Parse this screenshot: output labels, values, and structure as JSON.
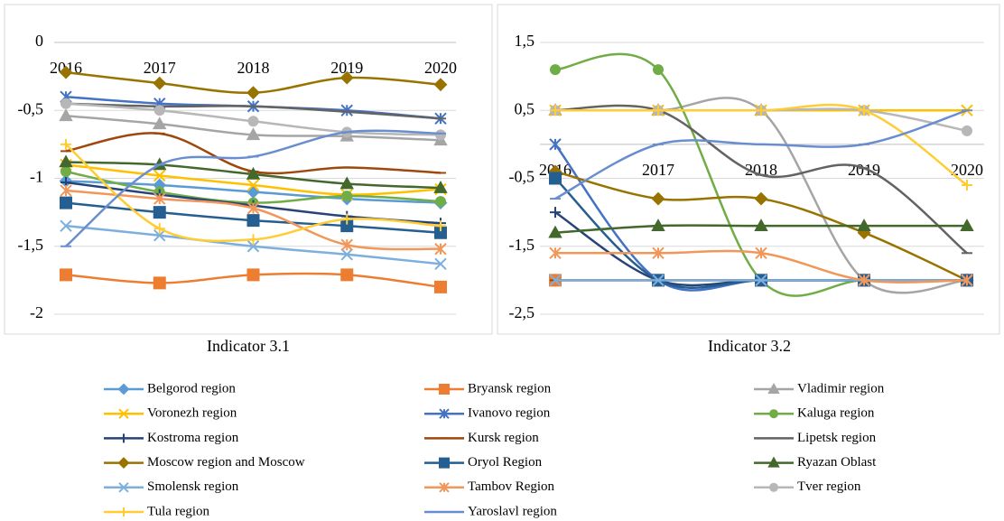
{
  "chart_data": [
    {
      "type": "line",
      "title": "Indicator 3.1",
      "categories": [
        "2016",
        "2017",
        "2018",
        "2019",
        "2020"
      ],
      "ylim": [
        -2,
        0
      ],
      "yticks": [
        0,
        {
          "value": -0.5,
          "label": "-0,5"
        },
        -1,
        {
          "value": -1.5,
          "label": "-1,5"
        },
        -2
      ],
      "grid": true,
      "smooth": true,
      "series": [
        {
          "name": "Belgorod region",
          "color": "#5b9bd5",
          "marker": "diamond",
          "values": [
            -1.02,
            -1.05,
            -1.1,
            -1.15,
            -1.18
          ]
        },
        {
          "name": "Bryansk region",
          "color": "#ed7d31",
          "marker": "square",
          "values": [
            -1.71,
            -1.77,
            -1.71,
            -1.71,
            -1.8
          ]
        },
        {
          "name": "Vladimir region",
          "color": "#a5a5a5",
          "marker": "triangle",
          "values": [
            -0.54,
            -0.6,
            -0.68,
            -0.69,
            -0.72
          ]
        },
        {
          "name": "Voronezh region",
          "color": "#ffc000",
          "marker": "x",
          "values": [
            -0.9,
            -0.98,
            -1.05,
            -1.12,
            -1.08
          ]
        },
        {
          "name": "Ivanovo region",
          "color": "#4472c4",
          "marker": "asterisk",
          "values": [
            -0.4,
            -0.45,
            -0.47,
            -0.5,
            -0.56
          ]
        },
        {
          "name": "Kaluga region",
          "color": "#70ad47",
          "marker": "circle",
          "values": [
            -0.95,
            -1.1,
            -1.18,
            -1.13,
            -1.17
          ]
        },
        {
          "name": "Kostroma region",
          "color": "#264478",
          "marker": "plus",
          "values": [
            -1.03,
            -1.12,
            -1.2,
            -1.28,
            -1.33
          ]
        },
        {
          "name": "Kursk region",
          "color": "#9e480e",
          "marker": "dash",
          "values": [
            -0.8,
            -0.67,
            -0.95,
            -0.92,
            -0.96
          ]
        },
        {
          "name": "Lipetsk region",
          "color": "#636363",
          "marker": "dash",
          "values": [
            -0.45,
            -0.47,
            -0.47,
            -0.51,
            -0.56
          ]
        },
        {
          "name": "Moscow region and Moscow",
          "color": "#997300",
          "marker": "diamond",
          "values": [
            -0.22,
            -0.3,
            -0.37,
            -0.26,
            -0.31
          ]
        },
        {
          "name": "Oryol Region",
          "color": "#255e91",
          "marker": "square",
          "values": [
            -1.18,
            -1.25,
            -1.31,
            -1.35,
            -1.4
          ]
        },
        {
          "name": "Ryazan Oblast",
          "color": "#43682b",
          "marker": "triangle",
          "values": [
            -0.88,
            -0.9,
            -0.97,
            -1.04,
            -1.07
          ]
        },
        {
          "name": "Smolensk region",
          "color": "#7cafdd",
          "marker": "x",
          "values": [
            -1.35,
            -1.42,
            -1.5,
            -1.56,
            -1.63
          ]
        },
        {
          "name": "Tambov Region",
          "color": "#f1975a",
          "marker": "asterisk",
          "values": [
            -1.09,
            -1.15,
            -1.22,
            -1.49,
            -1.52
          ]
        },
        {
          "name": "Tver region",
          "color": "#b7b7b7",
          "marker": "circle",
          "values": [
            -0.45,
            -0.5,
            -0.58,
            -0.66,
            -0.68
          ]
        },
        {
          "name": "Tula region",
          "color": "#ffcd33",
          "marker": "plus",
          "values": [
            -0.75,
            -1.37,
            -1.45,
            -1.3,
            -1.35
          ]
        },
        {
          "name": "Yaroslavl region",
          "color": "#698ed0",
          "marker": "dash",
          "values": [
            -1.5,
            -0.9,
            -0.84,
            -0.66,
            -0.67
          ]
        }
      ]
    },
    {
      "type": "line",
      "title": "Indicator 3.2",
      "categories": [
        "2016",
        "2017",
        "2018",
        "2019",
        "2020"
      ],
      "ylim": [
        -2.5,
        1.5
      ],
      "yticks": [
        {
          "value": 1.5,
          "label": "1,5"
        },
        {
          "value": 0.5,
          "label": "0,5"
        },
        {
          "value": -0.5,
          "label": "-0,5"
        },
        {
          "value": -1.5,
          "label": "-1,5"
        },
        {
          "value": -2.5,
          "label": "-2,5"
        }
      ],
      "grid": true,
      "smooth": true,
      "series": [
        {
          "name": "Belgorod region",
          "color": "#5b9bd5",
          "marker": "diamond",
          "values": [
            -2,
            -2,
            -2,
            -2,
            -2
          ]
        },
        {
          "name": "Bryansk region",
          "color": "#ed7d31",
          "marker": "square",
          "values": [
            -2,
            -2,
            -2,
            -2,
            -2
          ]
        },
        {
          "name": "Vladimir region",
          "color": "#a5a5a5",
          "marker": "triangle",
          "values": [
            0.5,
            0.5,
            0.5,
            -2,
            -2
          ]
        },
        {
          "name": "Voronezh region",
          "color": "#ffc000",
          "marker": "x",
          "values": [
            0.5,
            0.5,
            0.5,
            0.5,
            0.5
          ]
        },
        {
          "name": "Ivanovo region",
          "color": "#4472c4",
          "marker": "asterisk",
          "values": [
            0,
            -2,
            -2,
            -2,
            -2
          ]
        },
        {
          "name": "Kaluga region",
          "color": "#70ad47",
          "marker": "circle",
          "values": [
            1.1,
            1.1,
            -2,
            -2,
            -2
          ]
        },
        {
          "name": "Kostroma region",
          "color": "#264478",
          "marker": "plus",
          "values": [
            -1,
            -2,
            -2,
            -2,
            -2
          ]
        },
        {
          "name": "Kursk region",
          "color": "#9e480e",
          "marker": "dash",
          "values": [
            -2,
            -2,
            -2,
            -2,
            -2
          ]
        },
        {
          "name": "Lipetsk region",
          "color": "#636363",
          "marker": "dash",
          "values": [
            0.5,
            0.5,
            -0.45,
            -0.35,
            -1.6
          ]
        },
        {
          "name": "Moscow region and Moscow",
          "color": "#997300",
          "marker": "diamond",
          "values": [
            -0.4,
            -0.8,
            -0.8,
            -1.3,
            -2
          ]
        },
        {
          "name": "Oryol Region",
          "color": "#255e91",
          "marker": "square",
          "values": [
            -0.5,
            -2,
            -2,
            -2,
            -2
          ]
        },
        {
          "name": "Ryazan Oblast",
          "color": "#43682b",
          "marker": "triangle",
          "values": [
            -1.3,
            -1.2,
            -1.2,
            -1.2,
            -1.2
          ]
        },
        {
          "name": "Smolensk region",
          "color": "#7cafdd",
          "marker": "x",
          "values": [
            -2,
            -2,
            -2,
            -2,
            -2
          ]
        },
        {
          "name": "Tambov Region",
          "color": "#f1975a",
          "marker": "asterisk",
          "values": [
            -1.6,
            -1.6,
            -1.6,
            -2,
            -2
          ]
        },
        {
          "name": "Tver region",
          "color": "#b7b7b7",
          "marker": "circle",
          "values": [
            0.5,
            0.5,
            0.5,
            0.5,
            0.2
          ]
        },
        {
          "name": "Tula region",
          "color": "#ffcd33",
          "marker": "plus",
          "values": [
            0.5,
            0.5,
            0.5,
            0.5,
            -0.6
          ]
        },
        {
          "name": "Yaroslavl region",
          "color": "#698ed0",
          "marker": "dash",
          "values": [
            -0.8,
            0,
            0,
            0,
            0.5
          ]
        }
      ]
    }
  ]
}
